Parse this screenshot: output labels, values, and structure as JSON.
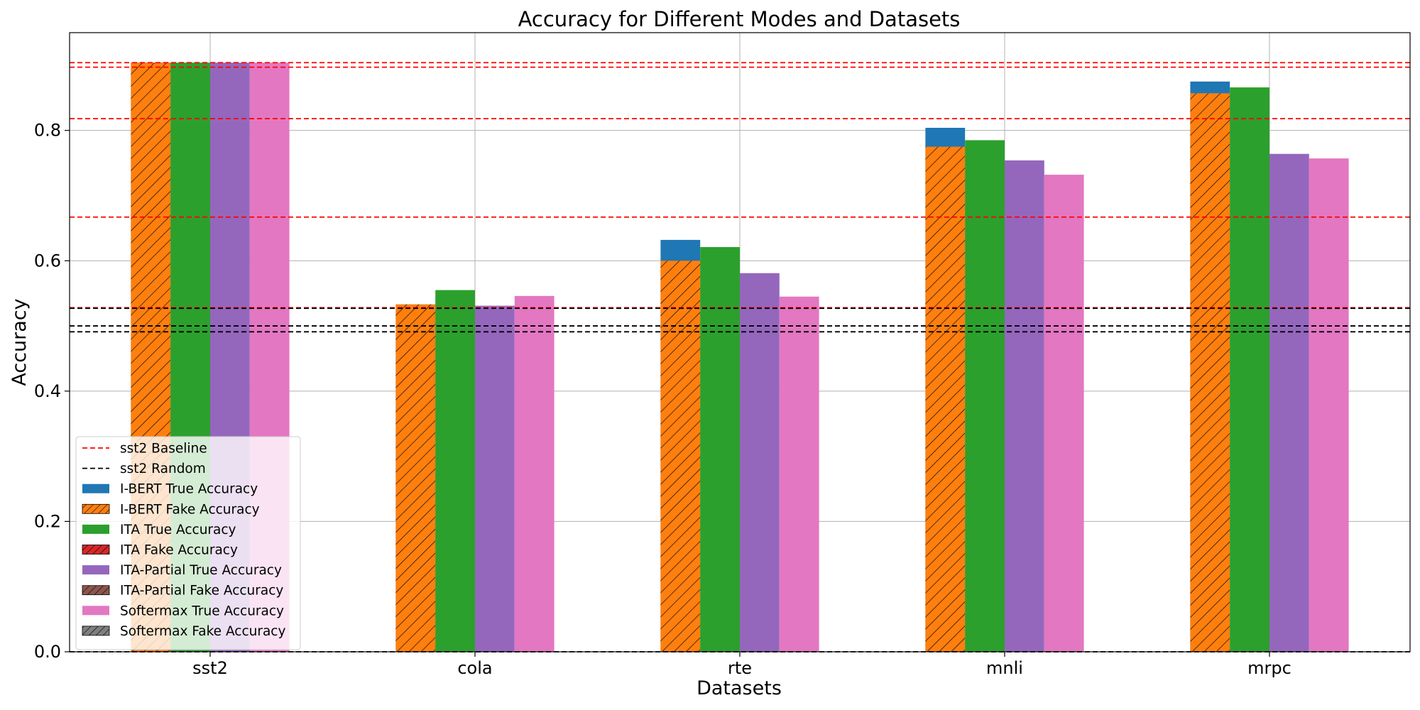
{
  "chart_data": {
    "type": "bar",
    "title": "Accuracy for Different Modes and Datasets",
    "xlabel": "Datasets",
    "ylabel": "Accuracy",
    "ylim": [
      0,
      0.95
    ],
    "yticks": [
      "0.0",
      "0.2",
      "0.4",
      "0.6",
      "0.8"
    ],
    "grid": true,
    "legend_position": "lower-left",
    "categories": [
      "sst2",
      "cola",
      "rte",
      "mnli",
      "mrpc"
    ],
    "series": [
      {
        "name": "I-BERT True Accuracy",
        "color": "#1f77b4",
        "hatch": false,
        "slot": 0,
        "values": [
          0.904,
          0.533,
          0.632,
          0.804,
          0.875
        ]
      },
      {
        "name": "I-BERT Fake Accuracy",
        "color": "#ff7f0e",
        "hatch": true,
        "slot": 0,
        "values": [
          0.904,
          0.533,
          0.6,
          0.775,
          0.857
        ]
      },
      {
        "name": "ITA True Accuracy",
        "color": "#2ca02c",
        "hatch": false,
        "slot": 1,
        "values": [
          0.904,
          0.555,
          0.621,
          0.785,
          0.866
        ]
      },
      {
        "name": "ITA Fake Accuracy",
        "color": "#d62728",
        "hatch": true,
        "slot": 1,
        "values": [
          0,
          0,
          0,
          0,
          0
        ]
      },
      {
        "name": "ITA-Partial True Accuracy",
        "color": "#9467bd",
        "hatch": false,
        "slot": 2,
        "values": [
          0.904,
          0.531,
          0.581,
          0.754,
          0.764
        ]
      },
      {
        "name": "ITA-Partial Fake Accuracy",
        "color": "#8c564b",
        "hatch": true,
        "slot": 2,
        "values": [
          0,
          0,
          0,
          0,
          0
        ]
      },
      {
        "name": "Softermax True Accuracy",
        "color": "#e377c2",
        "hatch": false,
        "slot": 3,
        "values": [
          0.904,
          0.546,
          0.545,
          0.732,
          0.757
        ]
      },
      {
        "name": "Softermax Fake Accuracy",
        "color": "#7f7f7f",
        "hatch": true,
        "slot": 3,
        "values": [
          0,
          0,
          0,
          0,
          0
        ]
      }
    ],
    "reference_lines": [
      {
        "kind": "baseline",
        "color": "#ff0000",
        "values": [
          0.904,
          0.897,
          0.818,
          0.667,
          0.528
        ]
      },
      {
        "kind": "random",
        "color": "#000000",
        "values": [
          0.527,
          0.5,
          0.491,
          0.0
        ]
      }
    ],
    "legend": [
      {
        "label": "sst2 Baseline",
        "type": "line",
        "color": "#ff0000"
      },
      {
        "label": "sst2 Random",
        "type": "line",
        "color": "#000000"
      },
      {
        "label": "I-BERT True Accuracy",
        "type": "patch",
        "color": "#1f77b4",
        "hatch": false
      },
      {
        "label": "I-BERT Fake Accuracy",
        "type": "patch",
        "color": "#ff7f0e",
        "hatch": true
      },
      {
        "label": "ITA True Accuracy",
        "type": "patch",
        "color": "#2ca02c",
        "hatch": false
      },
      {
        "label": "ITA Fake Accuracy",
        "type": "patch",
        "color": "#d62728",
        "hatch": true
      },
      {
        "label": "ITA-Partial True Accuracy",
        "type": "patch",
        "color": "#9467bd",
        "hatch": false
      },
      {
        "label": "ITA-Partial Fake Accuracy",
        "type": "patch",
        "color": "#8c564b",
        "hatch": true
      },
      {
        "label": "Softermax True Accuracy",
        "type": "patch",
        "color": "#e377c2",
        "hatch": false
      },
      {
        "label": "Softermax Fake Accuracy",
        "type": "patch",
        "color": "#7f7f7f",
        "hatch": true
      }
    ]
  }
}
